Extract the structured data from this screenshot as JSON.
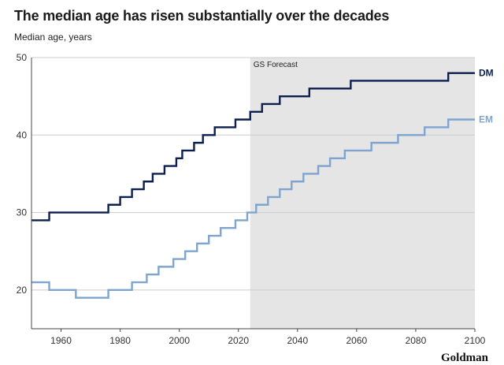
{
  "title": "The median age has risen substantially over the decades",
  "subtitle": "Median age, years",
  "brand": "Goldman",
  "colors": {
    "dm": "#0c1f4f",
    "em": "#7ea4cf",
    "forecast_band": "#e5e5e5",
    "grid": "#cccccc",
    "axis": "#444444"
  },
  "chart_data": {
    "type": "line",
    "title": "The median age has risen substantially over the decades",
    "ylabel": "Median age, years",
    "xlabel": "",
    "xlim": [
      1950,
      2100
    ],
    "ylim": [
      15,
      50
    ],
    "xticks": [
      1960,
      1980,
      2000,
      2020,
      2040,
      2060,
      2080,
      2100
    ],
    "yticks": [
      20,
      30,
      40,
      50
    ],
    "grid": "horizontal",
    "shaded_region": {
      "start": 2024,
      "end": 2100,
      "label": "GS Forecast"
    },
    "series": [
      {
        "name": "DM",
        "points": [
          [
            1950,
            29
          ],
          [
            1956,
            30
          ],
          [
            1976,
            31
          ],
          [
            1980,
            32
          ],
          [
            1984,
            33
          ],
          [
            1988,
            34
          ],
          [
            1991,
            35
          ],
          [
            1995,
            36
          ],
          [
            1999,
            37
          ],
          [
            2001,
            38
          ],
          [
            2005,
            39
          ],
          [
            2008,
            40
          ],
          [
            2012,
            41
          ],
          [
            2019,
            42
          ],
          [
            2024,
            43
          ],
          [
            2028,
            44
          ],
          [
            2034,
            45
          ],
          [
            2044,
            46
          ],
          [
            2058,
            47
          ],
          [
            2091,
            48
          ],
          [
            2100,
            48
          ]
        ]
      },
      {
        "name": "EM",
        "points": [
          [
            1950,
            21
          ],
          [
            1956,
            20
          ],
          [
            1965,
            19
          ],
          [
            1976,
            20
          ],
          [
            1984,
            21
          ],
          [
            1989,
            22
          ],
          [
            1993,
            23
          ],
          [
            1998,
            24
          ],
          [
            2002,
            25
          ],
          [
            2006,
            26
          ],
          [
            2010,
            27
          ],
          [
            2014,
            28
          ],
          [
            2019,
            29
          ],
          [
            2023,
            30
          ],
          [
            2026,
            31
          ],
          [
            2030,
            32
          ],
          [
            2034,
            33
          ],
          [
            2038,
            34
          ],
          [
            2042,
            35
          ],
          [
            2047,
            36
          ],
          [
            2051,
            37
          ],
          [
            2056,
            38
          ],
          [
            2065,
            39
          ],
          [
            2074,
            40
          ],
          [
            2083,
            41
          ],
          [
            2091,
            42
          ],
          [
            2100,
            42
          ]
        ]
      }
    ]
  }
}
